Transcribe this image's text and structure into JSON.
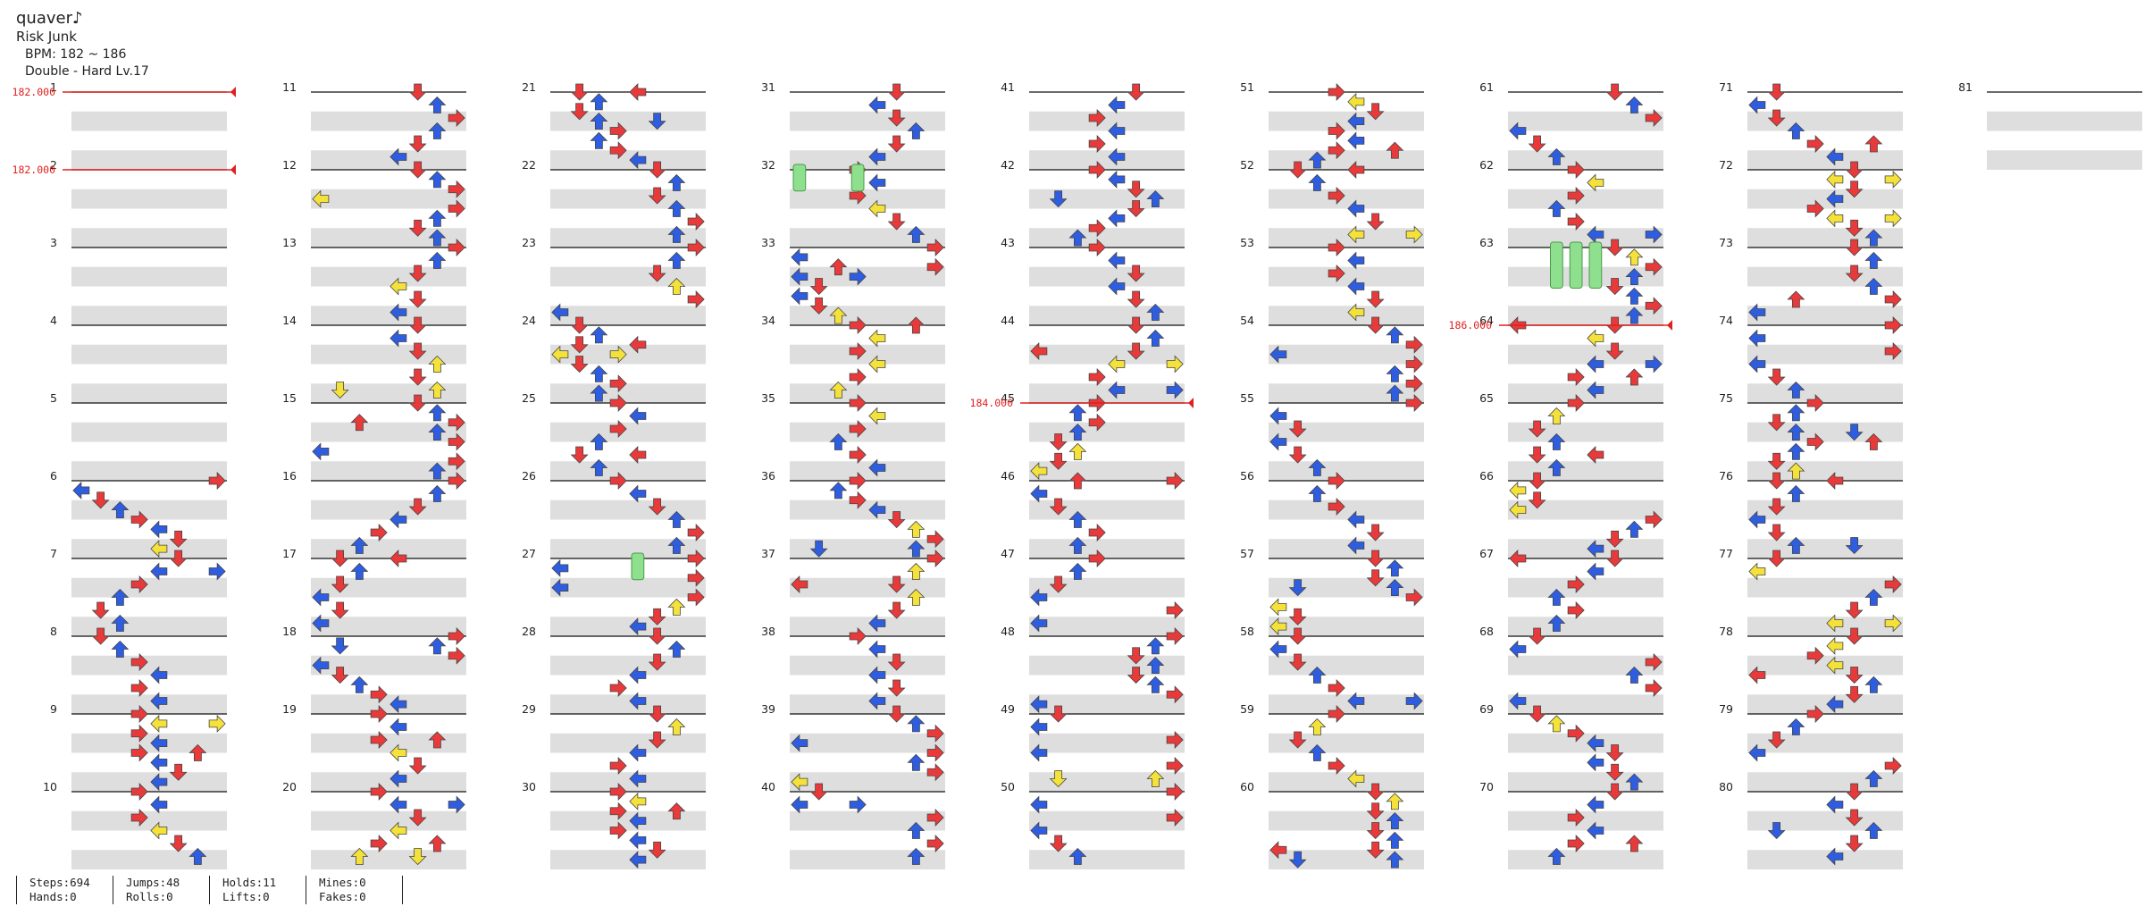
{
  "song": {
    "title": "quaver♪",
    "artist": "Risk Junk",
    "bpm_text": "BPM: 182 ~ 186",
    "difficulty_text": "Double - Hard  Lv.17"
  },
  "measures": {
    "first": 1,
    "last": 81,
    "per_column": 10,
    "beats_per_measure": 4
  },
  "bpm_changes": [
    {
      "measure": 1,
      "beat": 0,
      "label": "182.000"
    },
    {
      "measure": 2,
      "beat": 0,
      "label": "182.000"
    },
    {
      "measure": 45,
      "beat": 0,
      "label": "184.000"
    },
    {
      "measure": 64,
      "beat": 0,
      "label": "186.000"
    }
  ],
  "stats": [
    {
      "line1": "Steps:694",
      "line2": "Hands:0"
    },
    {
      "line1": "Jumps:48",
      "line2": "Rolls:0"
    },
    {
      "line1": "Holds:11",
      "line2": "Lifts:0"
    },
    {
      "line1": "Mines:0",
      "line2": "Fakes:0"
    }
  ],
  "colors": {
    "quarter": "#e83a3a",
    "eighth": "#2e5de0",
    "sixteenth": "#f4e23a",
    "hold": "#8ee08e",
    "bpm_line": "#e02020",
    "stripe": "#dedede",
    "measure_line": "#111111"
  },
  "icons": [
    "arrow-left-icon",
    "arrow-down-icon",
    "arrow-up-icon",
    "arrow-right-icon",
    "hold-note-icon"
  ]
}
